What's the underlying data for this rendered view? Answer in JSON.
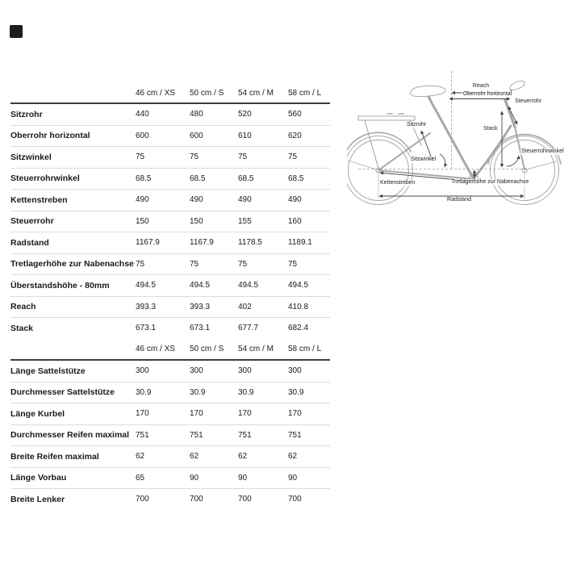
{
  "size_columns": [
    "46 cm / XS",
    "50 cm / S",
    "54 cm / M",
    "58 cm / L"
  ],
  "frame_geometry": {
    "rows": [
      {
        "label": "Sitzrohr",
        "values": [
          "440",
          "480",
          "520",
          "560"
        ]
      },
      {
        "label": "Oberrohr horizontal",
        "values": [
          "600",
          "600",
          "610",
          "620"
        ]
      },
      {
        "label": "Sitzwinkel",
        "values": [
          "75",
          "75",
          "75",
          "75"
        ]
      },
      {
        "label": "Steuerrohrwinkel",
        "values": [
          "68.5",
          "68.5",
          "68.5",
          "68.5"
        ]
      },
      {
        "label": "Kettenstreben",
        "values": [
          "490",
          "490",
          "490",
          "490"
        ]
      },
      {
        "label": "Steuerrohr",
        "values": [
          "150",
          "150",
          "155",
          "160"
        ]
      },
      {
        "label": "Radstand",
        "values": [
          "1167.9",
          "1167.9",
          "1178.5",
          "1189.1"
        ]
      },
      {
        "label": "Tretlagerhöhe zur Nabenachse",
        "values": [
          "75",
          "75",
          "75",
          "75"
        ]
      },
      {
        "label": "Überstandshöhe - 80mm",
        "values": [
          "494.5",
          "494.5",
          "494.5",
          "494.5"
        ]
      },
      {
        "label": "Reach",
        "values": [
          "393.3",
          "393.3",
          "402",
          "410.8"
        ]
      },
      {
        "label": "Stack",
        "values": [
          "673.1",
          "673.1",
          "677.7",
          "682.4"
        ]
      }
    ]
  },
  "components": {
    "rows": [
      {
        "label": "Länge Sattelstütze",
        "values": [
          "300",
          "300",
          "300",
          "300"
        ]
      },
      {
        "label": "Durchmesser Sattelstütze",
        "values": [
          "30.9",
          "30.9",
          "30.9",
          "30.9"
        ]
      },
      {
        "label": "Länge Kurbel",
        "values": [
          "170",
          "170",
          "170",
          "170"
        ]
      },
      {
        "label": "Durchmesser Reifen maximal",
        "values": [
          "751",
          "751",
          "751",
          "751"
        ]
      },
      {
        "label": "Breite Reifen maximal",
        "values": [
          "62",
          "62",
          "62",
          "62"
        ]
      },
      {
        "label": "Länge Vorbau",
        "values": [
          "65",
          "90",
          "90",
          "90"
        ]
      },
      {
        "label": "Breite Lenker",
        "values": [
          "700",
          "700",
          "700",
          "700"
        ]
      }
    ]
  },
  "diagram": {
    "labels": {
      "reach": "Reach",
      "oberrohr_horizontal": "Oberrohr horizontal",
      "steuerrohr": "Steuerrohr",
      "stack": "Stack",
      "sitzrohr": "Sitzrohr",
      "sitzwinkel": "Sitzwinkel",
      "steuerrohrwinkel": "Steuerrohrwinkel",
      "kettenstreben": "Kettenstreben",
      "tretlagerhoehe_zur_nabenachse": "Tretlagerhöhe zur Nabenachse",
      "radstand": "Radstand"
    }
  },
  "colors": {
    "text": "#1a1a1a",
    "separator_light": "#dcdcdc",
    "separator_dark": "#3c3c3c",
    "bike_line": "#a8a8a8",
    "annotation_line": "#444444",
    "brand_square": "#1d1d1b"
  }
}
